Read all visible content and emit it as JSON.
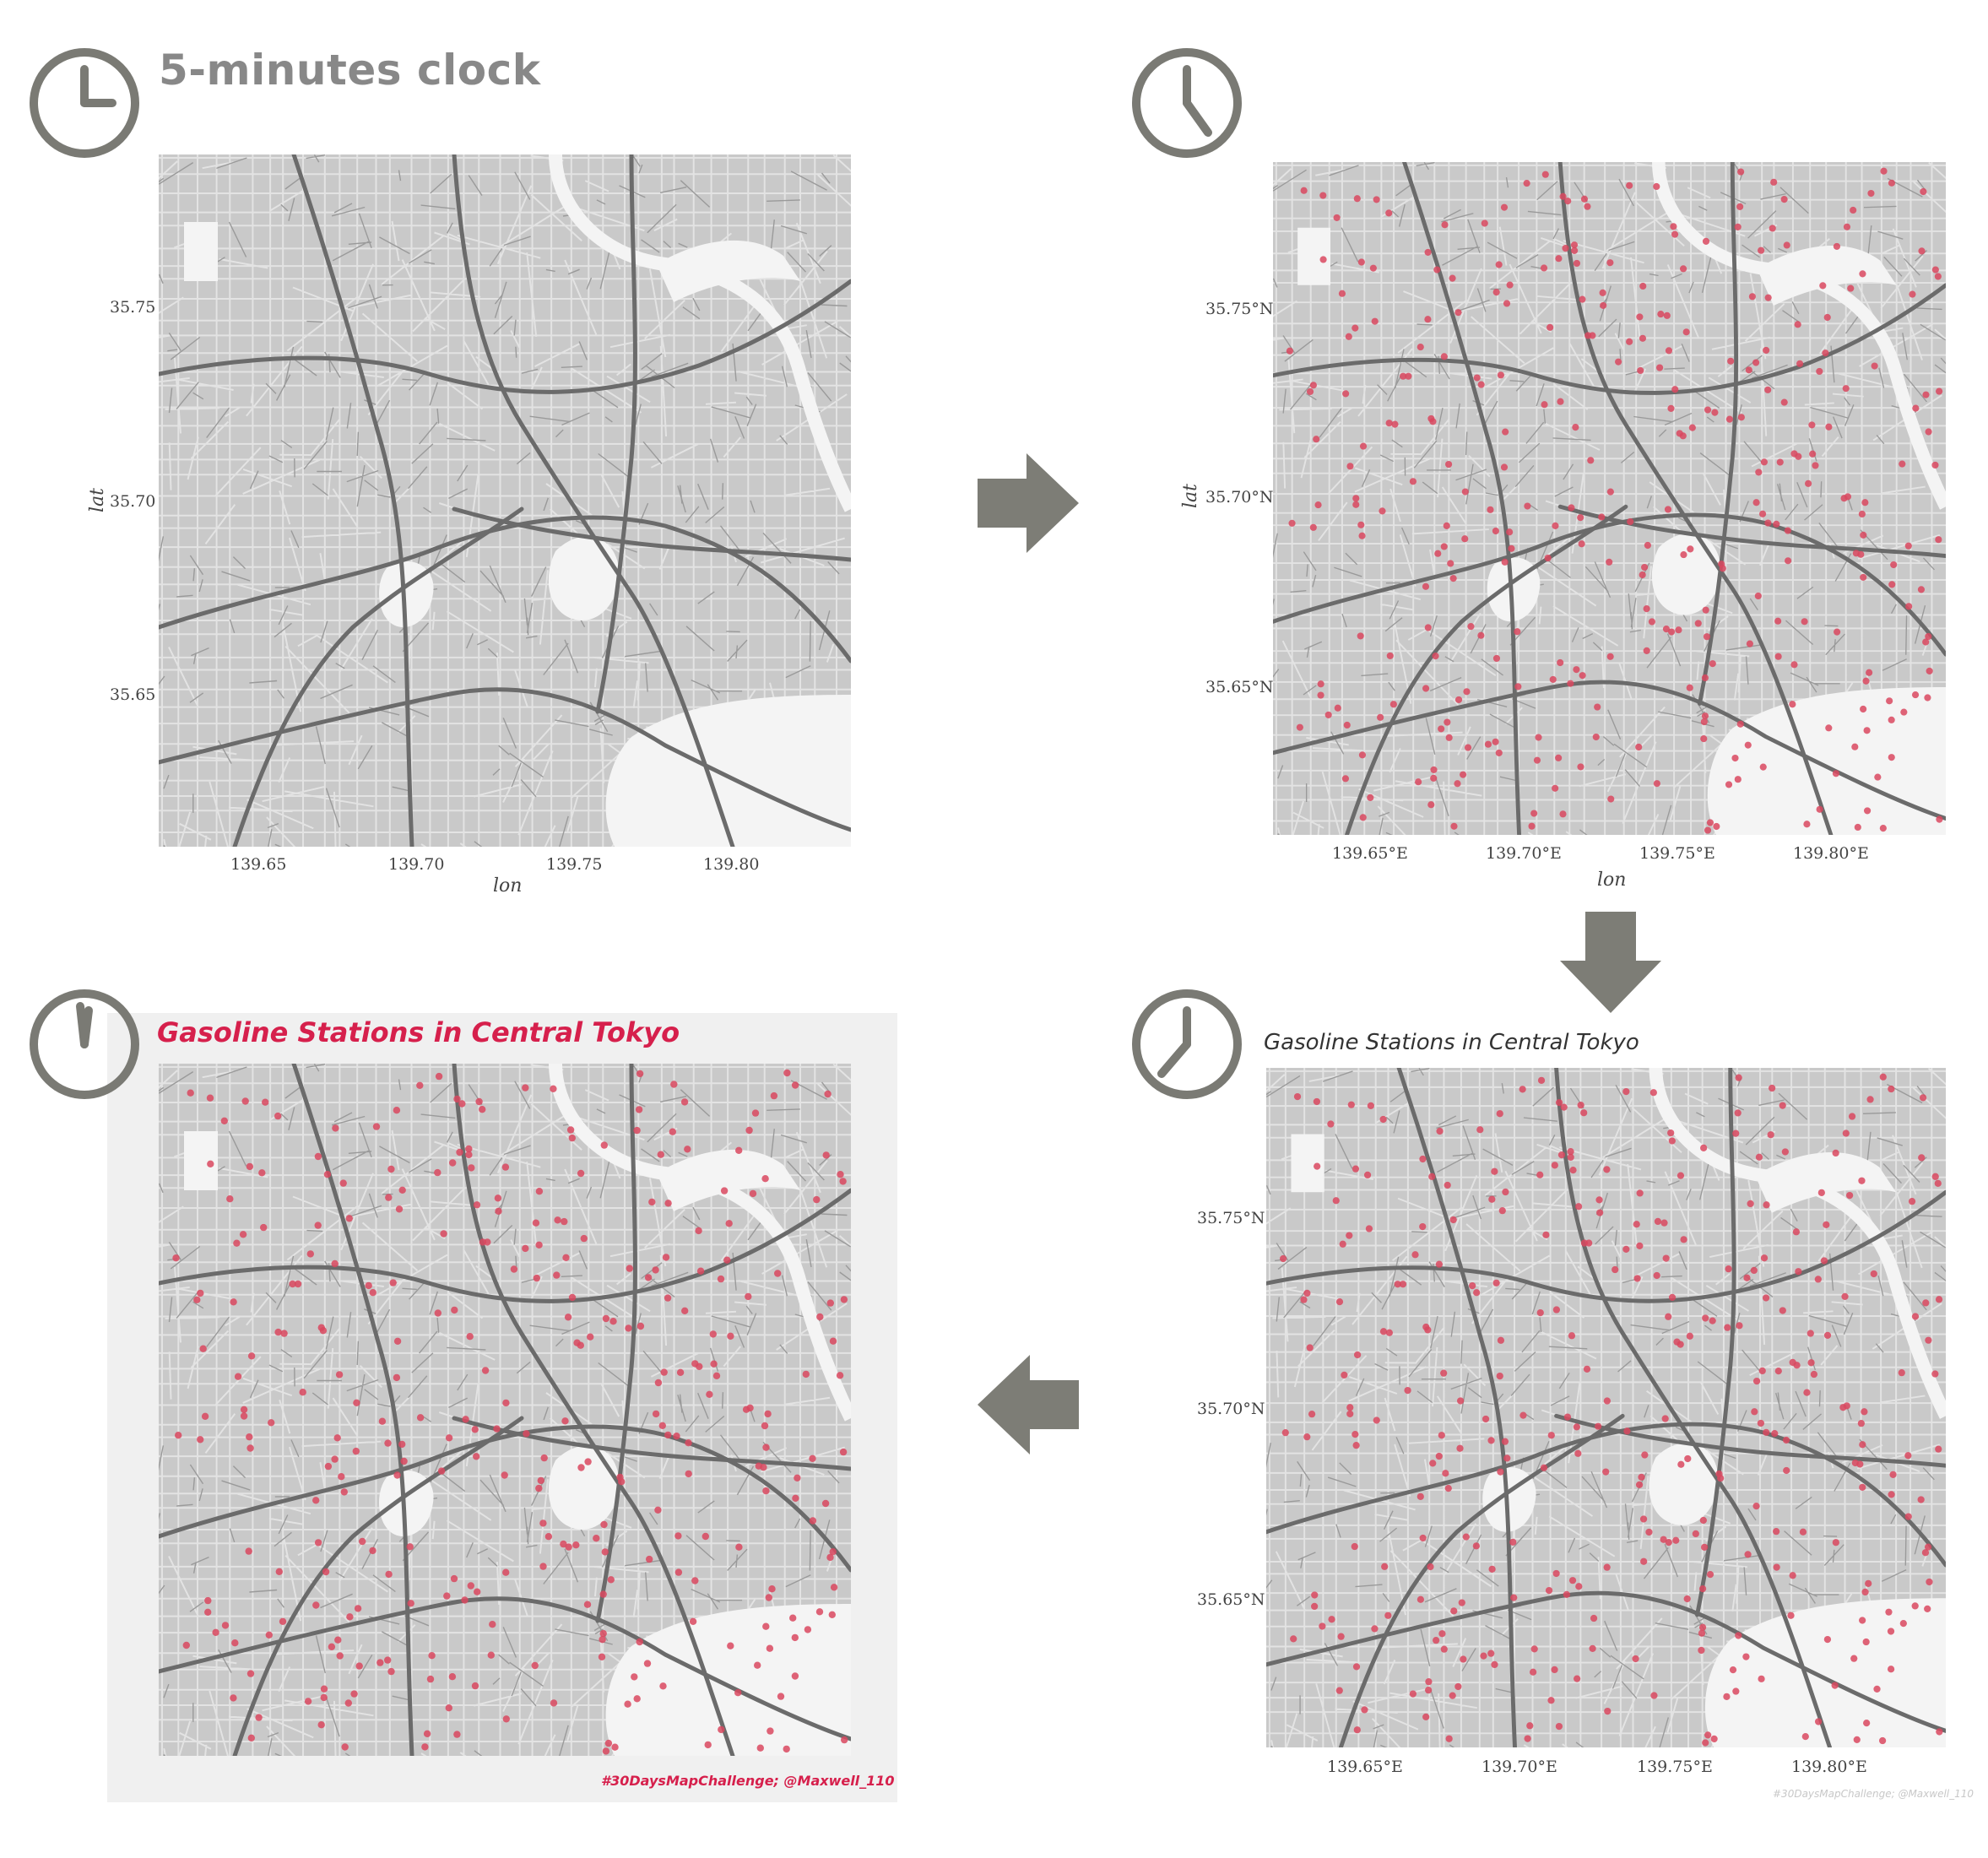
{
  "header": {
    "title": "5-minutes clock"
  },
  "panel1": {
    "lat_ticks": [
      "35.75",
      "35.70",
      "35.65"
    ],
    "lon_ticks": [
      "139.65",
      "139.70",
      "139.75",
      "139.80"
    ],
    "xlabel": "lon",
    "ylabel": "lat"
  },
  "panel2": {
    "lat_ticks": [
      "35.75°N",
      "35.70°N",
      "35.65°N"
    ],
    "lon_ticks": [
      "139.65°E",
      "139.70°E",
      "139.75°E",
      "139.80°E"
    ],
    "xlabel": "lon",
    "ylabel": "lat"
  },
  "panel3": {
    "title": "Gasoline Stations in Central Tokyo",
    "lat_ticks": [
      "35.75°N",
      "35.70°N",
      "35.65°N"
    ],
    "lon_ticks": [
      "139.65°E",
      "139.70°E",
      "139.75°E",
      "139.80°E"
    ],
    "caption": "#30DaysMapChallenge; @Maxwell_110"
  },
  "panel4": {
    "title": "Gasoline Stations in Central Tokyo",
    "caption": "#30DaysMapChallenge; @Maxwell_110"
  },
  "colors": {
    "clock": "#7a7a74",
    "arrow": "#7d7d76",
    "road": "#6b6b6b",
    "block": "#cfcfcf",
    "station": "#d9485f",
    "title_red": "#d6204c"
  },
  "icons": {
    "clock": "clock-icon",
    "arrow_right": "arrow-right-icon",
    "arrow_down": "arrow-down-icon",
    "arrow_left": "arrow-left-icon"
  }
}
